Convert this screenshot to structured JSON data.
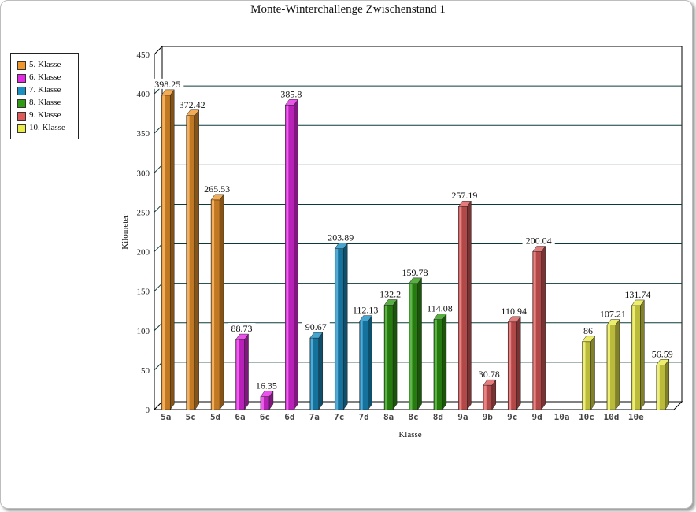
{
  "chart_data": {
    "type": "bar",
    "title": "Monte-Winterchallenge Zwischenstand 1",
    "xlabel": "Klasse",
    "ylabel": "Kilometer",
    "ylim": [
      0,
      450
    ],
    "yticks": [
      0,
      50,
      100,
      150,
      200,
      250,
      300,
      350,
      400,
      450
    ],
    "grid": true,
    "legend_position": "left",
    "groups": [
      {
        "name": "5. Klasse",
        "color": "#f0962a",
        "bars": [
          {
            "label": "5a",
            "value": 398.25,
            "text": "398.25"
          },
          {
            "label": "5c",
            "value": 372.42,
            "text": "372.42"
          },
          {
            "label": "5d",
            "value": 265.53,
            "text": "265.53"
          }
        ]
      },
      {
        "name": "6. Klasse",
        "color": "#e629e6",
        "bars": [
          {
            "label": "6a",
            "value": 88.73,
            "text": "88.73"
          },
          {
            "label": "6c",
            "value": 16.35,
            "text": "16.35"
          },
          {
            "label": "6d",
            "value": 385.8,
            "text": "385.8"
          }
        ]
      },
      {
        "name": "7. Klasse",
        "color": "#1a8fc4",
        "bars": [
          {
            "label": "7a",
            "value": 90.67,
            "text": "90.67"
          },
          {
            "label": "7c",
            "value": 203.89,
            "text": "203.89"
          },
          {
            "label": "7d",
            "value": 112.13,
            "text": "112.13"
          }
        ]
      },
      {
        "name": "8. Klasse",
        "color": "#2f9a12",
        "bars": [
          {
            "label": "8a",
            "value": 132.2,
            "text": "132.2"
          },
          {
            "label": "8c",
            "value": 159.78,
            "text": "159.78"
          },
          {
            "label": "8d",
            "value": 114.08,
            "text": "114.08"
          }
        ]
      },
      {
        "name": "9. Klasse",
        "color": "#e05a5a",
        "bars": [
          {
            "label": "9a",
            "value": 257.19,
            "text": "257.19"
          },
          {
            "label": "9b",
            "value": 30.78,
            "text": "30.78"
          },
          {
            "label": "9c",
            "value": 110.94,
            "text": "110.94"
          },
          {
            "label": "9d",
            "value": 200.04,
            "text": "200.04"
          }
        ]
      },
      {
        "name": "10. Klasse",
        "color": "#eaea4a",
        "bars": [
          {
            "label": "10a",
            "value": 0,
            "text": ""
          },
          {
            "label": "10c",
            "value": 86,
            "text": "86"
          },
          {
            "label": "10d",
            "value": 107.21,
            "text": "107.21"
          },
          {
            "label": "10e",
            "value": 131.74,
            "text": "131.74"
          },
          {
            "label": "",
            "value": 56.59,
            "text": "56.59"
          }
        ]
      }
    ],
    "categories": [
      "5a",
      "5c",
      "5d",
      "6a",
      "6c",
      "6d",
      "7a",
      "7c",
      "7d",
      "8a",
      "8c",
      "8d",
      "9a",
      "9b",
      "9c",
      "9d",
      "10a",
      "10c",
      "10d",
      "10e"
    ]
  }
}
